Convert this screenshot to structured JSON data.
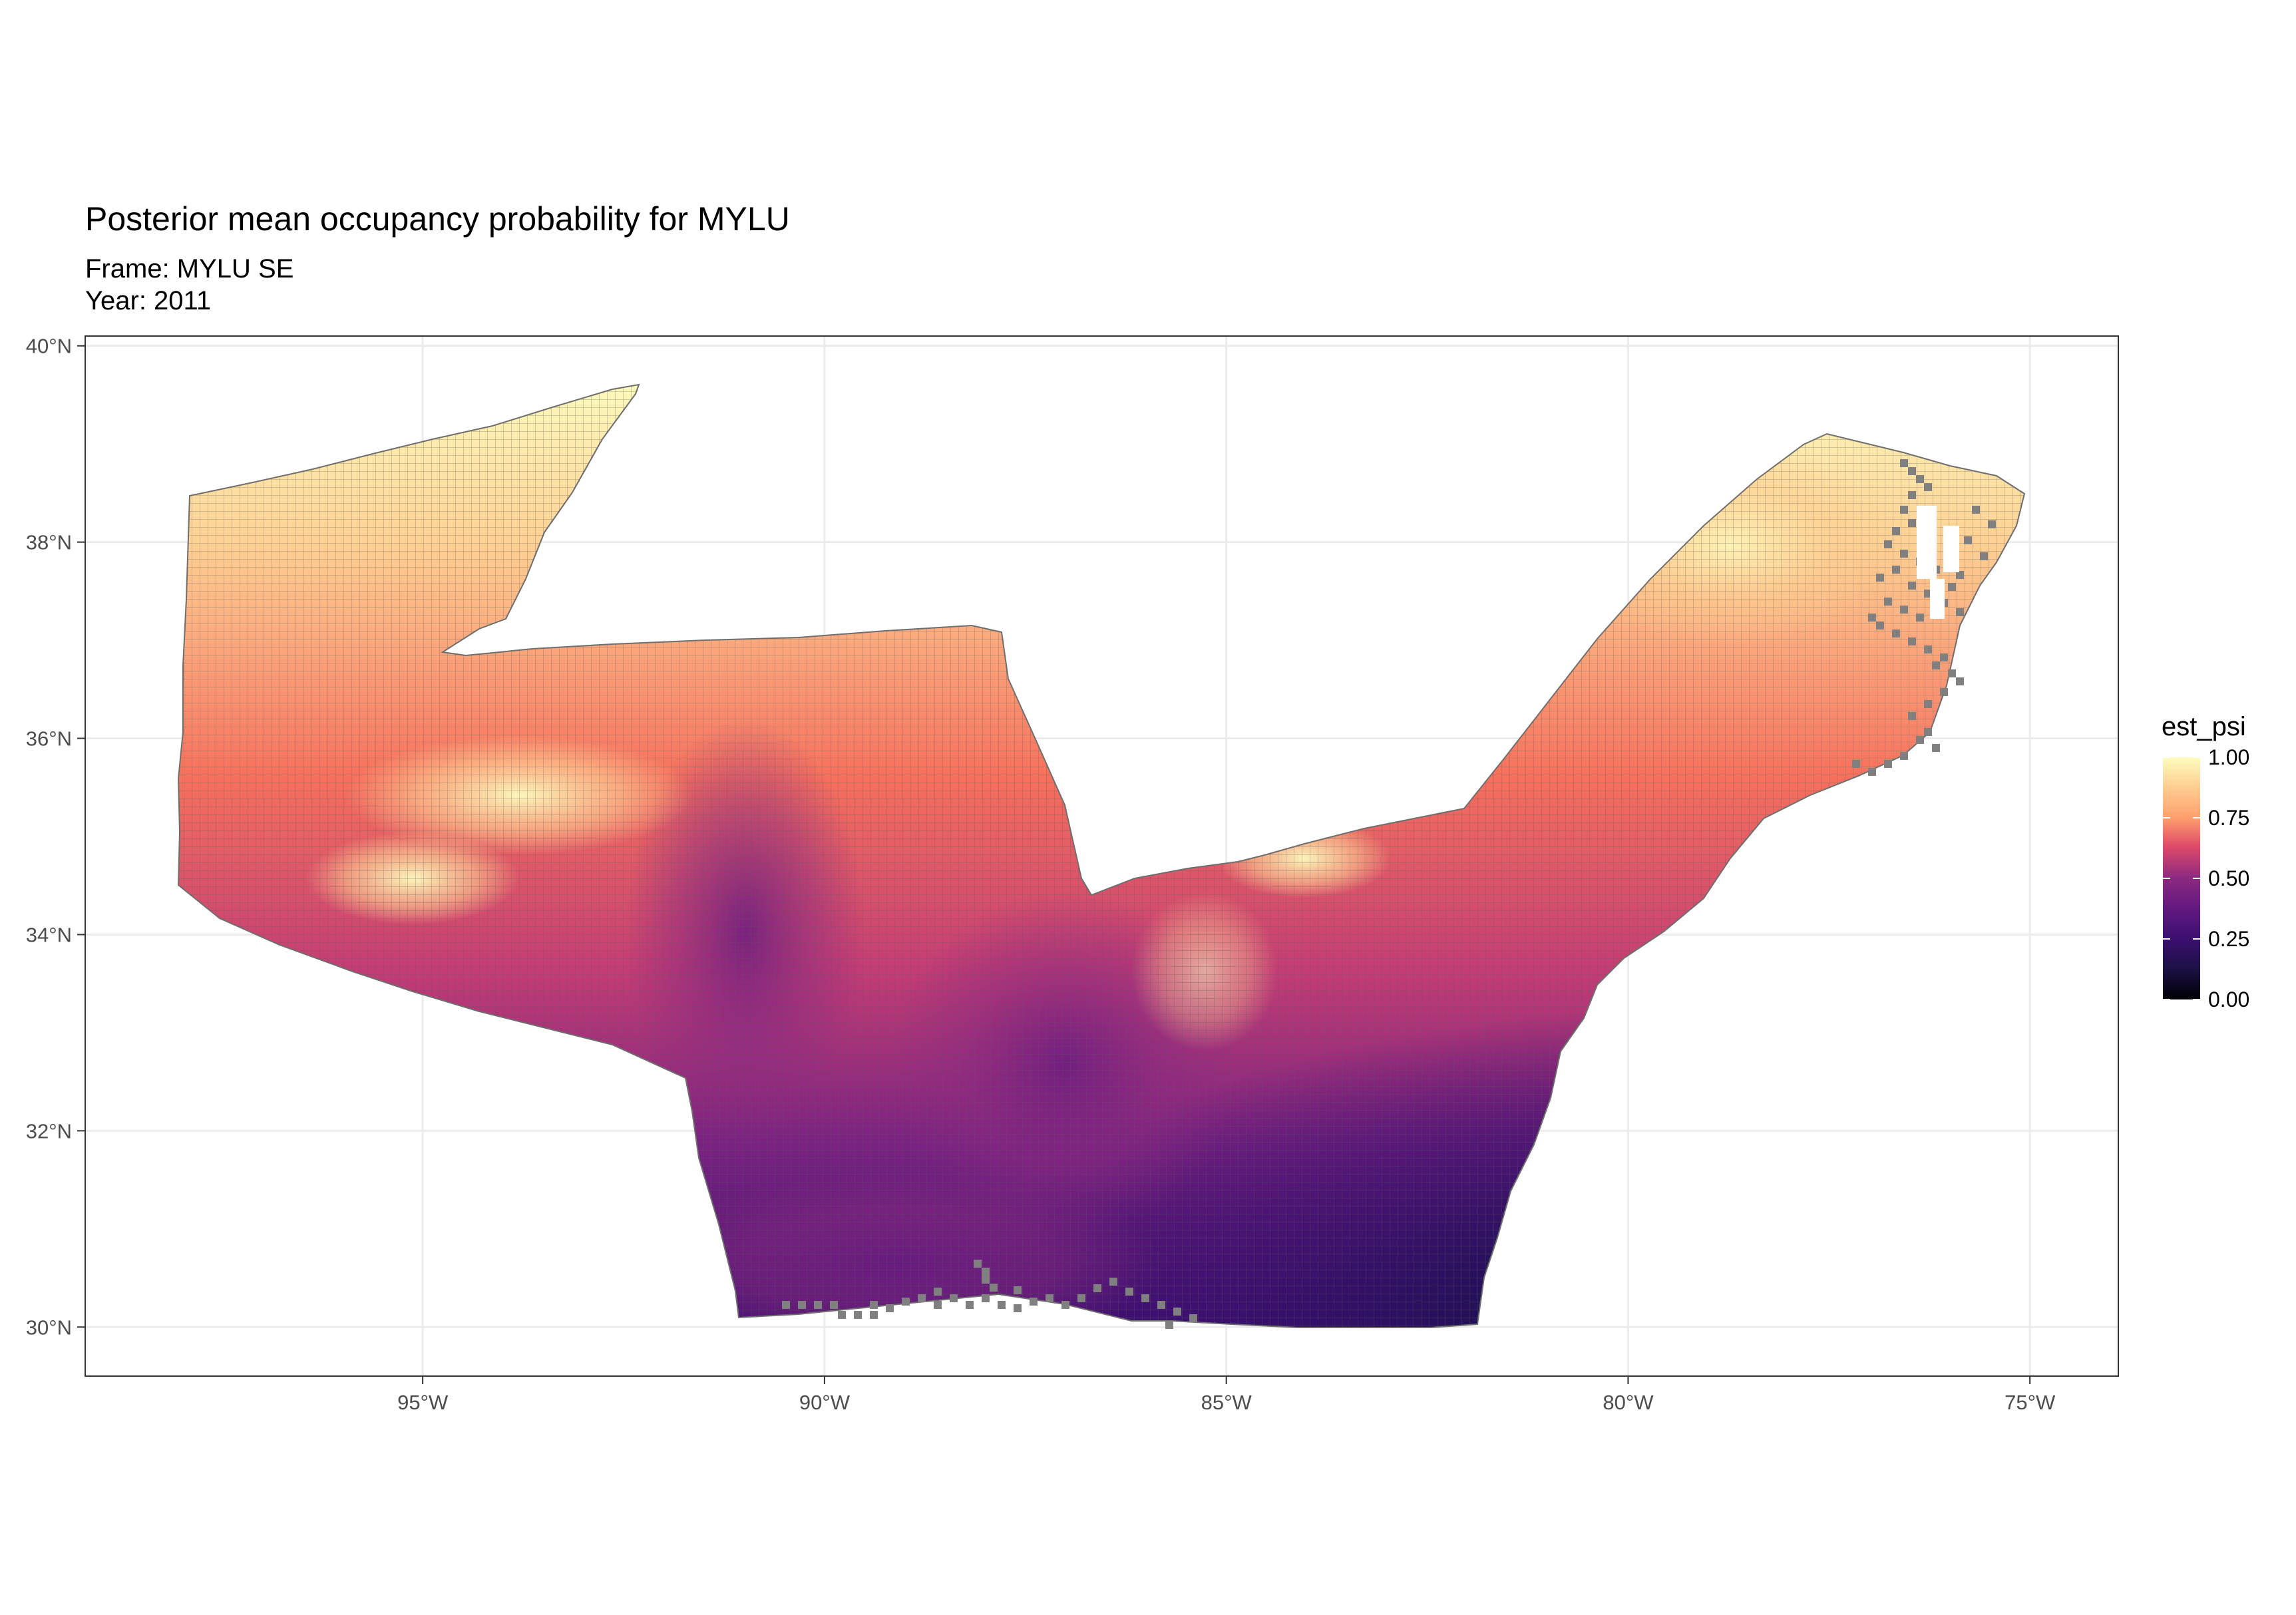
{
  "title": "Posterior mean occupancy probability for MYLU",
  "subtitle_frame": "Frame: MYLU SE",
  "subtitle_year": "Year: 2011",
  "map_data": {
    "type": "heatmap",
    "x_ticks": [
      {
        "value": -95,
        "label": "95°W"
      },
      {
        "value": -90,
        "label": "90°W"
      },
      {
        "value": -85,
        "label": "85°W"
      },
      {
        "value": -80,
        "label": "80°W"
      },
      {
        "value": -75,
        "label": "75°W"
      }
    ],
    "y_ticks": [
      {
        "value": 30,
        "label": "30°N"
      },
      {
        "value": 32,
        "label": "32°N"
      },
      {
        "value": 34,
        "label": "34°N"
      },
      {
        "value": 36,
        "label": "36°N"
      },
      {
        "value": 38,
        "label": "38°N"
      },
      {
        "value": 40,
        "label": "40°N"
      }
    ],
    "xlim": [
      -99.2,
      -73.9
    ],
    "ylim": [
      29.5,
      40.1
    ],
    "grid": true,
    "missing_color": "#808080",
    "color_scale": "magma",
    "colors": {
      "c0": "#000004",
      "c25": "#3b0f70",
      "c50": "#8c2981",
      "c75": "#fe9f6d",
      "c100": "#fcfdbf"
    }
  },
  "legend": {
    "title": "est_psi",
    "ticks": [
      {
        "value": 1.0,
        "label": "1.00"
      },
      {
        "value": 0.75,
        "label": "0.75"
      },
      {
        "value": 0.5,
        "label": "0.50"
      },
      {
        "value": 0.25,
        "label": "0.25"
      },
      {
        "value": 0.0,
        "label": "0.00"
      }
    ],
    "position": "right"
  }
}
